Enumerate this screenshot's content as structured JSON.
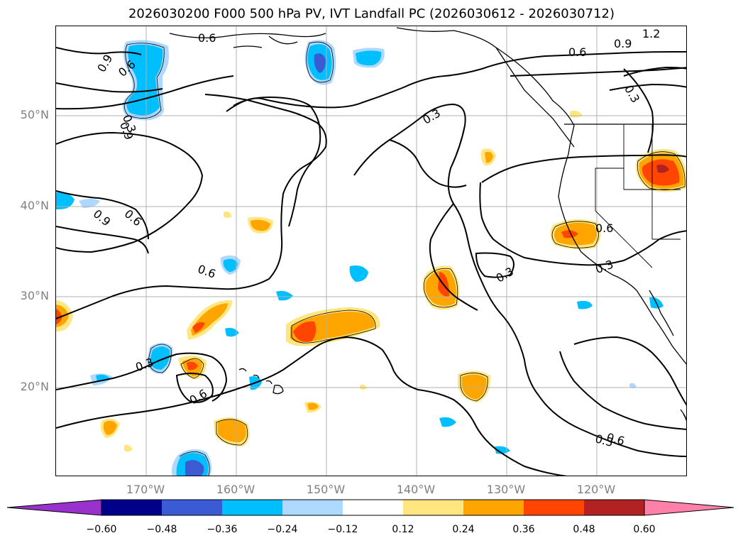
{
  "title": "2026030200 F000 500 hPa PV, IVT Landfall PC (2026030612 - 2026030712)",
  "lat_labels": [
    "50°N",
    "40°N",
    "30°N",
    "20°N"
  ],
  "lon_labels": [
    "170°W",
    "160°W",
    "150°W",
    "140°W",
    "130°W",
    "120°W"
  ],
  "contour_labels": [
    "0.6",
    "0.9",
    "0.6",
    "0.3",
    "0.6",
    "0.9",
    "1.2",
    "0.6",
    "0.9",
    "0.3",
    "0.3",
    "0.9",
    "0.6",
    "0.6",
    "0.6",
    "0.3",
    "0.3",
    "0.3",
    "0.6",
    "0.3"
  ],
  "colorbar": {
    "ticks": [
      "−0.60",
      "−0.48",
      "−0.36",
      "−0.24",
      "−0.12",
      "0.12",
      "0.24",
      "0.36",
      "0.48",
      "0.60"
    ],
    "colors": [
      "#9932cc",
      "#00008b",
      "#3a5bd4",
      "#00bfff",
      "#add8ff",
      "#ffffff",
      "#ffe680",
      "#ffa500",
      "#ff4500",
      "#b22222",
      "#ff80a8"
    ]
  },
  "colors": {
    "deep_blue": "#3a5bd4",
    "blue": "#00bfff",
    "light_blue": "#add8ff",
    "yellow": "#ffe680",
    "orange": "#ffa500",
    "red_orange": "#ff4500",
    "grid": "#b0b0b0",
    "axis_label": "#808080"
  }
}
